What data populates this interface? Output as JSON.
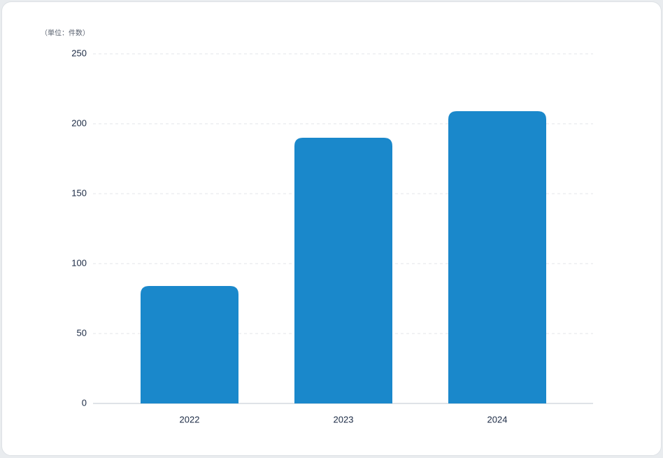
{
  "chart_data": {
    "type": "bar",
    "annotation": "（単位：件数）",
    "categories": [
      "2022",
      "2023",
      "2024"
    ],
    "values": [
      84,
      190,
      209
    ],
    "color": "#1a88cb",
    "ylim": [
      0,
      250
    ],
    "yticks": [
      0,
      50,
      100,
      150,
      200,
      250
    ],
    "grid": true
  }
}
